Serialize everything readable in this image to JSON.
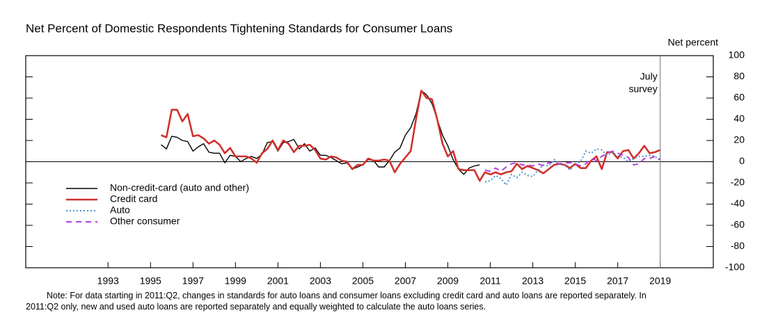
{
  "chart_data": {
    "type": "line",
    "title": "Net Percent of Domestic Respondents Tightening Standards for Consumer Loans",
    "y_axis_label": "Net percent",
    "annotation": {
      "lines": [
        "July",
        "survey"
      ],
      "x": 2019.5
    },
    "note": [
      "Note: For data starting in 2011:Q2, changes in standards for auto loans and consumer loans excluding credit card and auto loans are reported separately. In",
      "2011:Q2 only, new and used auto loans are reported separately and equally weighted to calculate the auto loans series."
    ],
    "xlim": [
      1989.625,
      2022.0
    ],
    "xticks": [
      {
        "value": 1993.5,
        "label": "1993"
      },
      {
        "value": 1995.5,
        "label": "1995"
      },
      {
        "value": 1997.5,
        "label": "1997"
      },
      {
        "value": 1999.5,
        "label": "1999"
      },
      {
        "value": 2001.5,
        "label": "2001"
      },
      {
        "value": 2003.5,
        "label": "2003"
      },
      {
        "value": 2005.5,
        "label": "2005"
      },
      {
        "value": 2007.5,
        "label": "2007"
      },
      {
        "value": 2009.5,
        "label": "2009"
      },
      {
        "value": 2011.5,
        "label": "2011"
      },
      {
        "value": 2013.5,
        "label": "2013"
      },
      {
        "value": 2015.5,
        "label": "2015"
      },
      {
        "value": 2017.5,
        "label": "2017"
      },
      {
        "value": 2019.5,
        "label": "2019"
      }
    ],
    "ylim": [
      -100,
      100
    ],
    "yticks": [
      -100,
      -80,
      -60,
      -40,
      -20,
      0,
      20,
      40,
      60,
      80,
      100
    ],
    "zero_line": true,
    "x": [
      1996,
      1996.25,
      1996.5,
      1996.75,
      1997,
      1997.25,
      1997.5,
      1997.75,
      1998,
      1998.25,
      1998.5,
      1998.75,
      1999,
      1999.25,
      1999.5,
      1999.75,
      2000,
      2000.25,
      2000.5,
      2000.75,
      2001,
      2001.25,
      2001.5,
      2001.75,
      2002,
      2002.25,
      2002.5,
      2002.75,
      2003,
      2003.25,
      2003.5,
      2003.75,
      2004,
      2004.25,
      2004.5,
      2004.75,
      2005,
      2005.25,
      2005.5,
      2005.75,
      2006,
      2006.25,
      2006.5,
      2006.75,
      2007,
      2007.25,
      2007.5,
      2007.75,
      2008,
      2008.25,
      2008.5,
      2008.75,
      2009,
      2009.25,
      2009.5,
      2009.75,
      2010,
      2010.25,
      2010.5,
      2010.75,
      2011,
      2011.25,
      2011.5,
      2011.75,
      2012,
      2012.25,
      2012.5,
      2012.75,
      2013,
      2013.25,
      2013.5,
      2013.75,
      2014,
      2014.25,
      2014.5,
      2014.75,
      2015,
      2015.25,
      2015.5,
      2015.75,
      2016,
      2016.25,
      2016.5,
      2016.75,
      2017,
      2017.25,
      2017.5,
      2017.75,
      2018,
      2018.25,
      2018.5,
      2018.75,
      2019,
      2019.25,
      2019.5
    ],
    "series": [
      {
        "name": "Non-credit-card (auto and other)",
        "color": "#000000",
        "style": "solid",
        "linewidth": 1.4,
        "values": [
          16,
          12,
          24,
          23,
          20,
          19,
          10,
          14,
          17,
          9,
          8,
          8,
          -1,
          6,
          5,
          0,
          3,
          5,
          3,
          7,
          18,
          19,
          10,
          18,
          19,
          21,
          12,
          17,
          10,
          13,
          6,
          6,
          4,
          1,
          -2,
          -1,
          -7,
          -5,
          -3,
          2,
          1,
          -5,
          -5,
          1,
          9,
          13,
          25,
          32,
          45,
          67,
          63,
          55,
          40,
          25,
          15,
          2,
          -7,
          -12,
          -6,
          -4,
          -3,
          null,
          null,
          null,
          null,
          null,
          null,
          null,
          null,
          null,
          null,
          null,
          null,
          null,
          null,
          null,
          null,
          null,
          null,
          null,
          null,
          null,
          null,
          null,
          null,
          null,
          null,
          null,
          null,
          null,
          null,
          null,
          null,
          null,
          null
        ]
      },
      {
        "name": "Credit card",
        "color": "#d0312d",
        "style": "solid",
        "linewidth": 2.6,
        "values": [
          25,
          23,
          49,
          49,
          38,
          45,
          24,
          25,
          22,
          17,
          20,
          16,
          8,
          13,
          5,
          5,
          5,
          3,
          -1,
          8,
          12,
          20,
          11,
          20,
          17,
          9,
          15,
          15,
          16,
          11,
          3,
          2,
          5,
          4,
          1,
          0,
          -7,
          -3,
          -3,
          3,
          1,
          1,
          2,
          1,
          -10,
          -2,
          4,
          10,
          40,
          67,
          60,
          59,
          40,
          17,
          5,
          10,
          -7,
          -8,
          -8,
          -8,
          -18,
          -10,
          -12,
          -10,
          -12,
          -10,
          -9,
          -2,
          -7,
          -4,
          -6,
          -8,
          -11,
          -7,
          -3,
          -2,
          -3,
          -6,
          -2,
          -6,
          -6,
          1,
          5,
          -7,
          9,
          9,
          3,
          10,
          11,
          3,
          8,
          15,
          8,
          9,
          11
        ]
      },
      {
        "name": "Auto",
        "color": "#4a90c8",
        "style": "dotted",
        "linewidth": 2,
        "values": [
          null,
          null,
          null,
          null,
          null,
          null,
          null,
          null,
          null,
          null,
          null,
          null,
          null,
          null,
          null,
          null,
          null,
          null,
          null,
          null,
          null,
          null,
          null,
          null,
          null,
          null,
          null,
          null,
          null,
          null,
          null,
          null,
          null,
          null,
          null,
          null,
          null,
          null,
          null,
          null,
          null,
          null,
          null,
          null,
          null,
          null,
          null,
          null,
          null,
          null,
          null,
          null,
          null,
          null,
          null,
          null,
          null,
          null,
          null,
          null,
          null,
          -19,
          -18,
          -13,
          -16,
          -22,
          -12,
          -15,
          -10,
          -13,
          -14,
          -8,
          -3,
          -4,
          2,
          -2,
          -3,
          -8,
          -2,
          0,
          10,
          8,
          12,
          11,
          6,
          9,
          5,
          4,
          0,
          3,
          5,
          5,
          6,
          5,
          1
        ]
      },
      {
        "name": "Other consumer",
        "color": "#b040e0",
        "style": "dashed",
        "linewidth": 2,
        "values": [
          null,
          null,
          null,
          null,
          null,
          null,
          null,
          null,
          null,
          null,
          null,
          null,
          null,
          null,
          null,
          null,
          null,
          null,
          null,
          null,
          null,
          null,
          null,
          null,
          null,
          null,
          null,
          null,
          null,
          null,
          null,
          null,
          null,
          null,
          null,
          null,
          null,
          null,
          null,
          null,
          null,
          null,
          null,
          null,
          null,
          null,
          null,
          null,
          null,
          null,
          null,
          null,
          null,
          null,
          null,
          null,
          null,
          null,
          null,
          null,
          null,
          -8,
          -9,
          -6,
          -9,
          -5,
          -2,
          -1,
          -3,
          -3,
          -4,
          -2,
          -4,
          -1,
          -1,
          -2,
          -1,
          -1,
          -2,
          -4,
          -2,
          3,
          1,
          5,
          8,
          10,
          8,
          6,
          4,
          -3,
          -2,
          3,
          3,
          5,
          2
        ]
      }
    ]
  }
}
